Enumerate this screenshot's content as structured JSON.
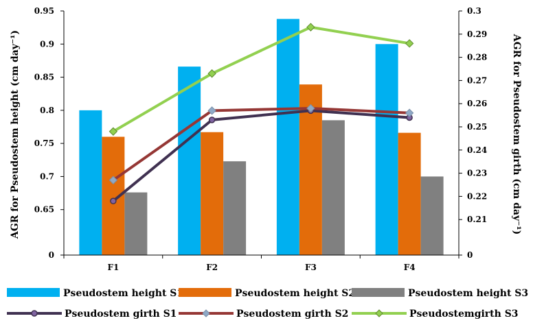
{
  "chart_data": {
    "type": "bar",
    "categories": [
      "F1",
      "F2",
      "F3",
      "F4"
    ],
    "ylabel": "AGR for Pseudostem height (cm day⁻¹)",
    "y2label": "AGR for Pseudostem girth (cm day⁻¹)",
    "ylim": [
      0,
      0.95
    ],
    "y_axis_break": [
      0,
      0.6
    ],
    "y_ticks": [
      "0",
      "0.65",
      "0.7",
      "0.75",
      "0.8",
      "0.85",
      "0.9",
      "0.95"
    ],
    "y2lim": [
      0,
      0.3
    ],
    "y2_axis_break": [
      0,
      0.2
    ],
    "y2_ticks": [
      "0",
      "0.21",
      "0.22",
      "0.23",
      "0.24",
      "0.25",
      "0.26",
      "0.27",
      "0.28",
      "0.29",
      "0.3"
    ],
    "bar_series": [
      {
        "name": "Pseudostem height S1",
        "color": "#00B0F0",
        "values": [
          0.8,
          0.866,
          0.938,
          0.9
        ]
      },
      {
        "name": "Pseudostem height S2",
        "color": "#E36C0A",
        "values": [
          0.76,
          0.767,
          0.839,
          0.766
        ]
      },
      {
        "name": "Pseudostem height S3",
        "color": "#808080",
        "values": [
          0.676,
          0.723,
          0.785,
          0.7
        ]
      }
    ],
    "line_series": [
      {
        "name": "Pseudostem girth S1",
        "color": "#403151",
        "marker": "circle",
        "axis": "right",
        "values": [
          0.218,
          0.253,
          0.257,
          0.254
        ]
      },
      {
        "name": "Pseudostem girth S2",
        "color": "#953735",
        "marker": "diamond",
        "axis": "right",
        "values": [
          0.227,
          0.257,
          0.258,
          0.256
        ]
      },
      {
        "name": "Pseudostemgirth S3",
        "color": "#92D050",
        "marker": "diamond",
        "axis": "right",
        "values": [
          0.248,
          0.273,
          0.293,
          0.286
        ]
      }
    ],
    "legend_position": "bottom",
    "grid": false
  }
}
